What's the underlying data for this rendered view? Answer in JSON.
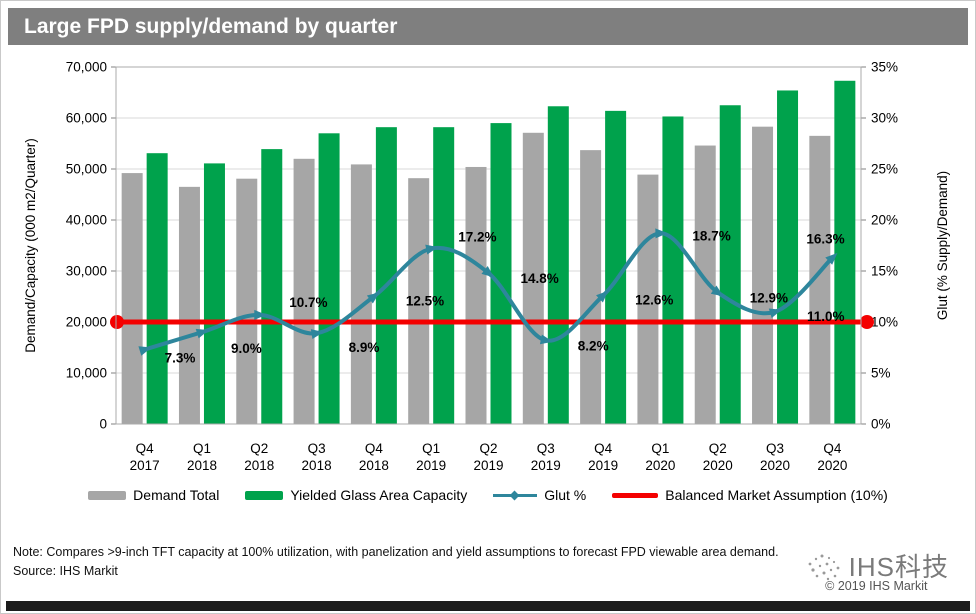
{
  "header": {
    "title": "Large FPD supply/demand by quarter"
  },
  "note": "Note: Compares >9-inch TFT capacity at 100% utilization, with panelization and yield assumptions to forecast FPD viewable area demand.",
  "source": "Source: IHS Markit",
  "watermark": {
    "brand": "IHS科技",
    "copyright": "© 2019 IHS Markit"
  },
  "colors": {
    "title_bar": "#7f7f7f",
    "demand_bar": "#a6a6a6",
    "capacity_bar": "#00a24c",
    "glut_line": "#2e869c",
    "balanced_line": "#f40000",
    "grid": "#d9d9d9",
    "plot_border": "#ababab",
    "tick": "#808080",
    "text": "#000000",
    "bottom_bar": "#1c1c1c"
  },
  "chart_data": {
    "type": "combo_bar_line",
    "title": "Large FPD supply/demand by quarter",
    "categories": [
      "Q4 2017",
      "Q1 2018",
      "Q2 2018",
      "Q3 2018",
      "Q4 2018",
      "Q1 2019",
      "Q2 2019",
      "Q3 2019",
      "Q4 2019",
      "Q1 2020",
      "Q2 2020",
      "Q3 2020",
      "Q4 2020"
    ],
    "left_axis": {
      "label": "Demand/Capacity (000 m2/Quarter)",
      "min": 0,
      "max": 70000,
      "tick_step": 10000,
      "tick_labels": [
        "0",
        "10,000",
        "20,000",
        "30,000",
        "40,000",
        "50,000",
        "60,000",
        "70,000"
      ]
    },
    "right_axis": {
      "label": "Glut (% Supply/Demand)",
      "min": 0,
      "max": 35,
      "tick_step": 5,
      "tick_labels": [
        "0%",
        "5%",
        "10%",
        "15%",
        "20%",
        "25%",
        "30%",
        "35%"
      ]
    },
    "grid": true,
    "legend_position": "bottom",
    "series": [
      {
        "name": "Demand Total",
        "type": "bar",
        "axis": "left",
        "color": "#a6a6a6",
        "values": [
          49200,
          46500,
          48100,
          52000,
          50900,
          48200,
          50400,
          57100,
          53700,
          48900,
          54600,
          58300,
          56500
        ]
      },
      {
        "name": "Yielded Glass Area Capacity",
        "type": "bar",
        "axis": "left",
        "color": "#00a24c",
        "values": [
          53100,
          51100,
          53900,
          57000,
          58200,
          58200,
          59000,
          62300,
          61400,
          60300,
          62500,
          65400,
          67300
        ]
      },
      {
        "name": "Glut %",
        "type": "line",
        "axis": "right",
        "color": "#2e869c",
        "values": [
          7.3,
          9.0,
          10.7,
          8.9,
          12.5,
          17.2,
          14.8,
          8.2,
          12.6,
          18.7,
          12.9,
          11.0,
          16.3
        ],
        "point_labels": [
          "7.3%",
          "9.0%",
          "10.7%",
          "8.9%",
          "12.5%",
          "17.2%",
          "14.8%",
          "8.2%",
          "12.6%",
          "18.7%",
          "12.9%",
          "11.0%",
          "16.3%"
        ]
      },
      {
        "name": "Balanced Market Assumption (10%)",
        "type": "hline",
        "axis": "right",
        "color": "#f40000",
        "value": 10
      }
    ]
  }
}
